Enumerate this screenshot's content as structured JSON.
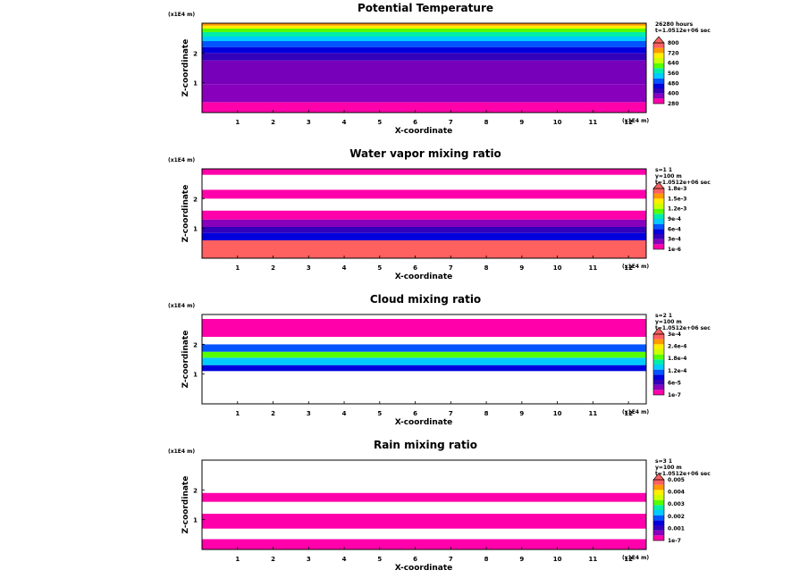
{
  "chart_data": [
    {
      "type": "heatmap",
      "title": "Potential Temperature",
      "xlabel": "X-coordinate",
      "ylabel": "Z-coordinate",
      "x_scale_label": "(x1E4 m)",
      "z_scale_label": "(x1E4 m)",
      "x_ticks": [
        "1",
        "2",
        "3",
        "4",
        "5",
        "6",
        "7",
        "8",
        "9",
        "10",
        "11",
        "12"
      ],
      "z_ticks": [
        "1",
        "2"
      ],
      "xlim": [
        0,
        12.5
      ],
      "zlim": [
        0,
        3
      ],
      "legend_header": [
        "26280 hours",
        "t=1.0512e+06 sec"
      ],
      "colorbar_labels": [
        "280",
        "400",
        "480",
        "560",
        "640",
        "720",
        "800"
      ],
      "colors": [
        "#ff00aa",
        "#8800bb",
        "#3300bb",
        "#0000dd",
        "#0055ff",
        "#00ccff",
        "#00eeaa",
        "#55ff00",
        "#ccff00",
        "#ffee00",
        "#ff9900",
        "#ff6060"
      ],
      "layers": [
        {
          "z": [
            0,
            0.35
          ],
          "c": "#ff00aa"
        },
        {
          "z": [
            0.35,
            0.95
          ],
          "c": "#8800bb"
        },
        {
          "z": [
            0.95,
            1.75
          ],
          "c": "#7700bb"
        },
        {
          "z": [
            1.75,
            2.0
          ],
          "c": "#3300bb"
        },
        {
          "z": [
            2.0,
            2.2
          ],
          "c": "#0000dd"
        },
        {
          "z": [
            2.2,
            2.4
          ],
          "c": "#0055ff"
        },
        {
          "z": [
            2.4,
            2.55
          ],
          "c": "#00ccff"
        },
        {
          "z": [
            2.55,
            2.7
          ],
          "c": "#00eeaa"
        },
        {
          "z": [
            2.7,
            2.82
          ],
          "c": "#55ff00"
        },
        {
          "z": [
            2.82,
            2.92
          ],
          "c": "#ffee00"
        },
        {
          "z": [
            2.92,
            3.0
          ],
          "c": "#ff9900"
        }
      ]
    },
    {
      "type": "heatmap",
      "title": "Water vapor mixing ratio",
      "xlabel": "X-coordinate",
      "ylabel": "Z-coordinate",
      "x_scale_label": "(x1E4 m)",
      "z_scale_label": "(x1E4 m)",
      "x_ticks": [
        "1",
        "2",
        "3",
        "4",
        "5",
        "6",
        "7",
        "8",
        "9",
        "10",
        "11",
        "12"
      ],
      "z_ticks": [
        "1",
        "2"
      ],
      "xlim": [
        0,
        12.5
      ],
      "zlim": [
        0,
        3
      ],
      "legend_header": [
        "s=1 1",
        "y=100 m",
        "t=1.0512e+06 sec"
      ],
      "colorbar_labels": [
        "1e-6",
        "3e-4",
        "6e-4",
        "9e-4",
        "1.2e-3",
        "1.5e-3",
        "1.8e-3"
      ],
      "colors": [
        "#ff00aa",
        "#8800bb",
        "#3300bb",
        "#0000dd",
        "#0055ff",
        "#00ccff",
        "#00eeaa",
        "#55ff00",
        "#ccff00",
        "#ffee00",
        "#ff9900",
        "#ff6060"
      ],
      "layers": [
        {
          "z": [
            0,
            0.6
          ],
          "c": "#ff6060"
        },
        {
          "z": [
            0.6,
            0.85
          ],
          "c": "#0000dd"
        },
        {
          "z": [
            0.85,
            1.05
          ],
          "c": "#3300bb"
        },
        {
          "z": [
            1.05,
            1.3
          ],
          "c": "#8800bb"
        },
        {
          "z": [
            1.3,
            1.6
          ],
          "c": "#ff00aa"
        },
        {
          "z": [
            1.6,
            2.0
          ],
          "c": "#ffffff"
        },
        {
          "z": [
            2.0,
            2.3
          ],
          "c": "#ff00aa"
        },
        {
          "z": [
            2.3,
            2.8
          ],
          "c": "#ffffff"
        },
        {
          "z": [
            2.8,
            3.0
          ],
          "c": "#ff00aa"
        }
      ]
    },
    {
      "type": "heatmap",
      "title": "Cloud mixing ratio",
      "xlabel": "X-coordinate",
      "ylabel": "Z-coordinate",
      "x_scale_label": "(x1E4 m)",
      "z_scale_label": "(x1E4 m)",
      "x_ticks": [
        "1",
        "2",
        "3",
        "4",
        "5",
        "6",
        "7",
        "8",
        "9",
        "10",
        "11",
        "12"
      ],
      "z_ticks": [
        "1",
        "2"
      ],
      "xlim": [
        0,
        12.5
      ],
      "zlim": [
        0,
        3
      ],
      "legend_header": [
        "s=2 1",
        "y=100 m",
        "t=1.0512e+06 sec"
      ],
      "colorbar_labels": [
        "1e-7",
        "6e-5",
        "1.2e-4",
        "1.8e-4",
        "2.4e-4",
        "3e-4"
      ],
      "colors": [
        "#ff00aa",
        "#8800bb",
        "#3300bb",
        "#0000dd",
        "#0055ff",
        "#00ccff",
        "#00eeaa",
        "#55ff00",
        "#ccff00",
        "#ffee00",
        "#ff9900",
        "#ff6060"
      ],
      "layers": [
        {
          "z": [
            0,
            1.1
          ],
          "c": "#ffffff"
        },
        {
          "z": [
            1.1,
            1.3
          ],
          "c": "#0000dd"
        },
        {
          "z": [
            1.3,
            1.55
          ],
          "c": "#00ccff"
        },
        {
          "z": [
            1.55,
            1.75
          ],
          "c": "#55ff00"
        },
        {
          "z": [
            1.75,
            2.0
          ],
          "c": "#0055ff"
        },
        {
          "z": [
            2.0,
            2.25
          ],
          "c": "#ffffff"
        },
        {
          "z": [
            2.25,
            2.85
          ],
          "c": "#ff00aa"
        },
        {
          "z": [
            2.85,
            3.0
          ],
          "c": "#ffffff"
        }
      ]
    },
    {
      "type": "heatmap",
      "title": "Rain mixing ratio",
      "xlabel": "X-coordinate",
      "ylabel": "Z-coordinate",
      "x_scale_label": "(x1E4 m)",
      "z_scale_label": "(x1E4 m)",
      "x_ticks": [
        "1",
        "2",
        "3",
        "4",
        "5",
        "6",
        "7",
        "8",
        "9",
        "10",
        "11",
        "12"
      ],
      "z_ticks": [
        "1",
        "2"
      ],
      "xlim": [
        0,
        12.5
      ],
      "zlim": [
        0,
        3
      ],
      "legend_header": [
        "s=3 1",
        "y=100 m",
        "t=1.0512e+06 sec"
      ],
      "colorbar_labels": [
        "1e-7",
        "0.001",
        "0.002",
        "0.003",
        "0.004",
        "0.005"
      ],
      "colors": [
        "#ff00aa",
        "#8800bb",
        "#3300bb",
        "#0000dd",
        "#0055ff",
        "#00ccff",
        "#00eeaa",
        "#55ff00",
        "#ccff00",
        "#ffee00",
        "#ff9900",
        "#ff6060"
      ],
      "layers": [
        {
          "z": [
            0,
            0.35
          ],
          "c": "#ff00aa"
        },
        {
          "z": [
            0.35,
            0.7
          ],
          "c": "#ffffff"
        },
        {
          "z": [
            0.7,
            1.2
          ],
          "c": "#ff00aa"
        },
        {
          "z": [
            1.2,
            1.6
          ],
          "c": "#ffffff"
        },
        {
          "z": [
            1.6,
            1.9
          ],
          "c": "#ff00aa"
        },
        {
          "z": [
            1.9,
            3.0
          ],
          "c": "#ffffff"
        }
      ]
    }
  ]
}
